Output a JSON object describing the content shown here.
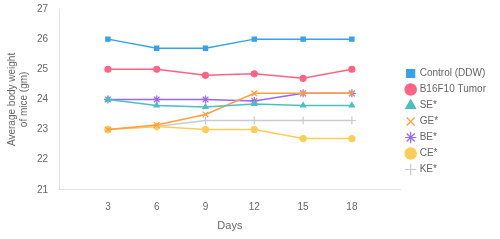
{
  "chart_data": {
    "type": "line",
    "x": [
      3,
      6,
      9,
      12,
      15,
      18
    ],
    "series": [
      {
        "name": "Control (DDW)",
        "marker": "square",
        "values": [
          26.0,
          25.7,
          25.7,
          26.0,
          26.0,
          26.0
        ]
      },
      {
        "name": "B16F10 Tumor",
        "marker": "circle",
        "values": [
          25.0,
          25.0,
          24.8,
          24.85,
          24.7,
          25.0
        ]
      },
      {
        "name": "SE*",
        "marker": "triangle",
        "values": [
          24.0,
          23.8,
          23.75,
          23.85,
          23.8,
          23.8
        ]
      },
      {
        "name": "GE*",
        "marker": "x",
        "values": [
          23.0,
          23.15,
          23.5,
          24.2,
          24.2,
          24.2
        ]
      },
      {
        "name": "BE*",
        "marker": "star",
        "values": [
          24.0,
          24.0,
          24.0,
          23.95,
          24.2,
          24.2
        ]
      },
      {
        "name": "CE*",
        "marker": "circle",
        "values": [
          23.0,
          23.1,
          23.0,
          23.0,
          22.7,
          22.7
        ]
      },
      {
        "name": "KE*",
        "marker": "plus",
        "values": [
          23.0,
          23.1,
          23.3,
          23.3,
          23.3,
          23.3
        ]
      }
    ],
    "xlabel": "Days",
    "ylabel": "Average body weight\nof mice (gm)",
    "xlim": [
      0,
      21
    ],
    "xticks": [
      3,
      6,
      9,
      12,
      15,
      18
    ],
    "ylim": [
      21,
      27
    ],
    "yticks": [
      21,
      22,
      23,
      24,
      25,
      26,
      27
    ],
    "grid": false,
    "legend": "right"
  }
}
